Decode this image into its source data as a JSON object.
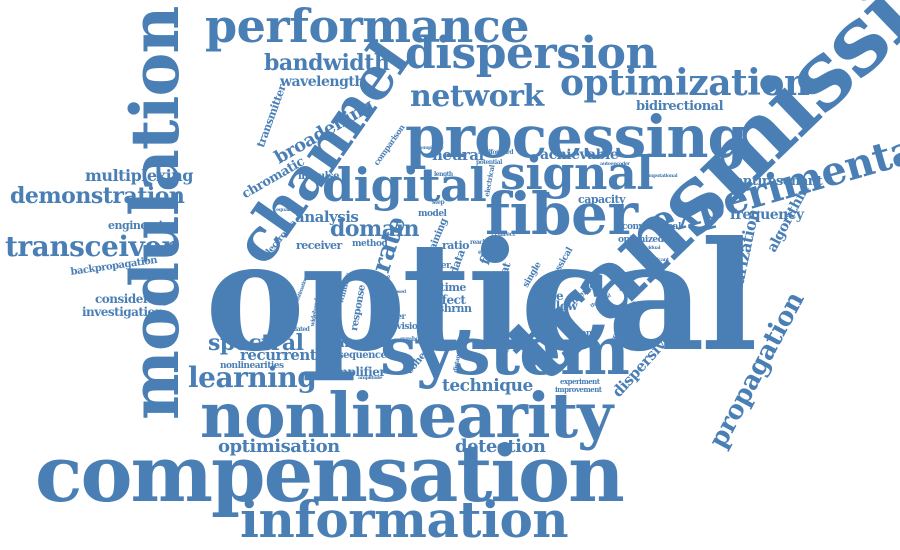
{
  "color": "#4a7fb5",
  "words": {
    "optical": "optical",
    "transmission": "transmission",
    "compensation": "compensation",
    "system": "system",
    "modulation": "modulation",
    "nonlinearity": "nonlinearity",
    "processing": "processing",
    "fiber": "fiber",
    "channel": "channel",
    "information": "information",
    "performance": "performance",
    "digital": "digital",
    "signal": "signal",
    "dispersion": "dispersion",
    "experimental": "experimental",
    "optimization": "optimization",
    "network": "network",
    "transceiver": "transceiver",
    "learning": "learning",
    "propagation": "propagation",
    "demonstration": "demonstration",
    "spectral": "spectral",
    "bandwidth": "bandwidth",
    "domain": "domain",
    "analysis": "analysis",
    "rate": "rate",
    "optimisation": "optimisation",
    "detection": "detection",
    "multiplexing": "multiplexing",
    "technique": "technique",
    "broadening": "broadening",
    "recurrent": "recurrent",
    "polarization": "polarization",
    "dispersive": "dispersive",
    "achievable": "achievable",
    "frequency": "frequency",
    "capacity": "capacity",
    "wavelength": "wavelength",
    "chromatic": "chromatic",
    "neural": "neural",
    "bidirectional": "bidirectional",
    "antiresonant": "antiresonant",
    "algorithm": "algorithm",
    "considering": "considering",
    "investigation": "investigation",
    "engineering": "engineering",
    "backpropagation": "backpropagation",
    "transmitter": "transmitter",
    "intensity": "intensity",
    "amplifier": "amplifier",
    "sequence": "sequence",
    "receiver": "receiver",
    "impulse": "impulse",
    "conventional": "conventional",
    "noise": "noise",
    "fibre": "fibre",
    "effect": "effect",
    "nonlinearities": "nonlinearities",
    "coherent": "coherent",
    "response": "response",
    "division": "division",
    "electronic": "electronic",
    "optimized": "optimized",
    "training": "training",
    "method": "method",
    "memory": "memory",
    "scheme": "scheme",
    "generative": "generative",
    "format": "format",
    "hollow": "hollow",
    "single": "single",
    "classical": "classical",
    "comparison": "comparison",
    "model": "model",
    "ratio": "ratio",
    "time": "time",
    "filter": "filter",
    "data": "data",
    "shrnn": "shrnn",
    "paper": "paper",
    "window": "window",
    "experiment": "experiment",
    "improvement": "improvement",
    "modulated": "modulated",
    "wideband": "wideband",
    "feedforward": "feedforward",
    "potential": "potential",
    "complexity": "complexity",
    "computational": "computational",
    "length": "length",
    "electrical": "electrical",
    "individual": "individual",
    "distance": "distance",
    "symbol": "symbol",
    "amplitude": "amplitude",
    "estimation": "estimation",
    "capability": "capability",
    "equalization": "equalization",
    "validation": "validation",
    "significant": "significant",
    "concept": "concept",
    "threshold": "threshold",
    "reach": "reach",
    "encoder": "encoder",
    "proposed": "proposed",
    "evaluation": "evaluation",
    "limitation": "limitation",
    "parameter": "parameter",
    "autoencoder": "autoencoder",
    "error": "error",
    "step": "step",
    "lookup": "lookup",
    "optical_small": "optical",
    "direct": "direct",
    "performance_small": "performance"
  }
}
